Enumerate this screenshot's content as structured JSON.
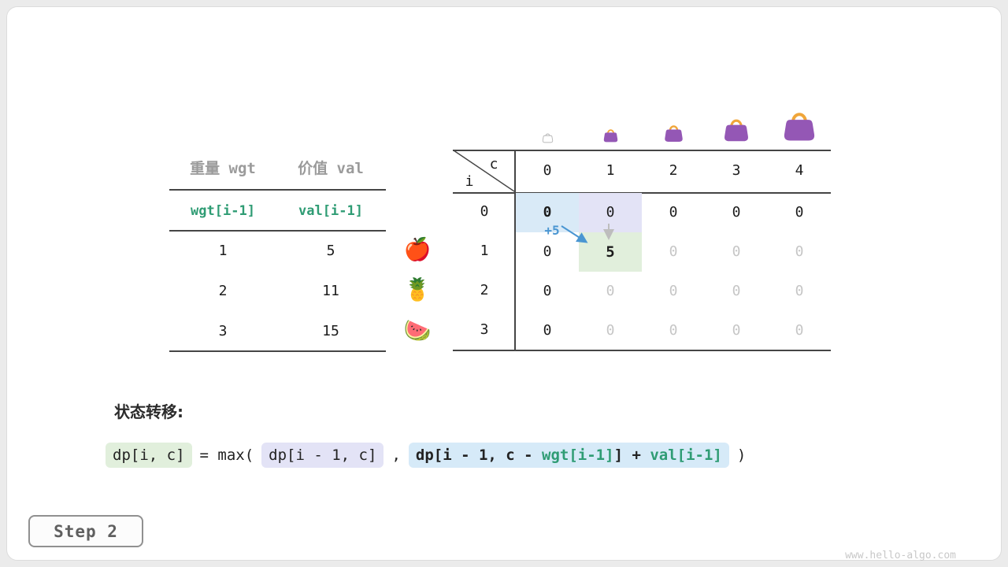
{
  "items_table": {
    "headers": [
      "重量 wgt",
      "价值 val"
    ],
    "formula_row": [
      "wgt[i-1]",
      "val[i-1]"
    ],
    "rows": [
      {
        "wgt": "1",
        "val": "5",
        "fruit": "apple",
        "icon": "🍎"
      },
      {
        "wgt": "2",
        "val": "11",
        "fruit": "pineapple",
        "icon": "🍍"
      },
      {
        "wgt": "3",
        "val": "15",
        "fruit": "watermelon",
        "icon": "🍉"
      }
    ]
  },
  "dp_table": {
    "row_var": "i",
    "col_var": "c",
    "col_headers": [
      "0",
      "1",
      "2",
      "3",
      "4"
    ],
    "row_headers": [
      "0",
      "1",
      "2",
      "3"
    ],
    "cells": [
      [
        "0",
        "0",
        "0",
        "0",
        "0"
      ],
      [
        "0",
        "5",
        "0",
        "0",
        "0"
      ],
      [
        "0",
        "0",
        "0",
        "0",
        "0"
      ],
      [
        "0",
        "0",
        "0",
        "0",
        "0"
      ]
    ],
    "cell_states": [
      [
        "bold",
        "normal",
        "normal",
        "normal",
        "normal"
      ],
      [
        "normal",
        "new",
        "empty",
        "empty",
        "empty"
      ],
      [
        "normal",
        "empty",
        "empty",
        "empty",
        "empty"
      ],
      [
        "normal",
        "empty",
        "empty",
        "empty",
        "empty"
      ]
    ],
    "highlights": [
      {
        "row": 0,
        "col": 0,
        "color": "blue"
      },
      {
        "row": 0,
        "col": 1,
        "color": "lavender"
      },
      {
        "row": 1,
        "col": 1,
        "color": "green"
      }
    ],
    "annotation": "+5"
  },
  "transition": {
    "label": "状态转移:",
    "lhs": "dp[i, c]",
    "equals_max": "= max(",
    "option_skip": "dp[i - 1, c]",
    "comma": ",",
    "option_take_prefix": "dp[i - 1, c - ",
    "option_take_wgt": "wgt[i-1]",
    "option_take_mid": "] + ",
    "option_take_val": "val[i-1]",
    "close_paren": ")"
  },
  "step_badge": "Step 2",
  "watermark": "www.hello-algo.com",
  "colors": {
    "accent_green": "#2f9c74",
    "accent_blue": "#4a96d2",
    "highlight_blue": "#d9eaf7",
    "highlight_lavender": "#e3e3f6",
    "highlight_green": "#e1efdc",
    "bag_purple": "#9457b5",
    "bag_handle_orange": "#f0a63a"
  }
}
